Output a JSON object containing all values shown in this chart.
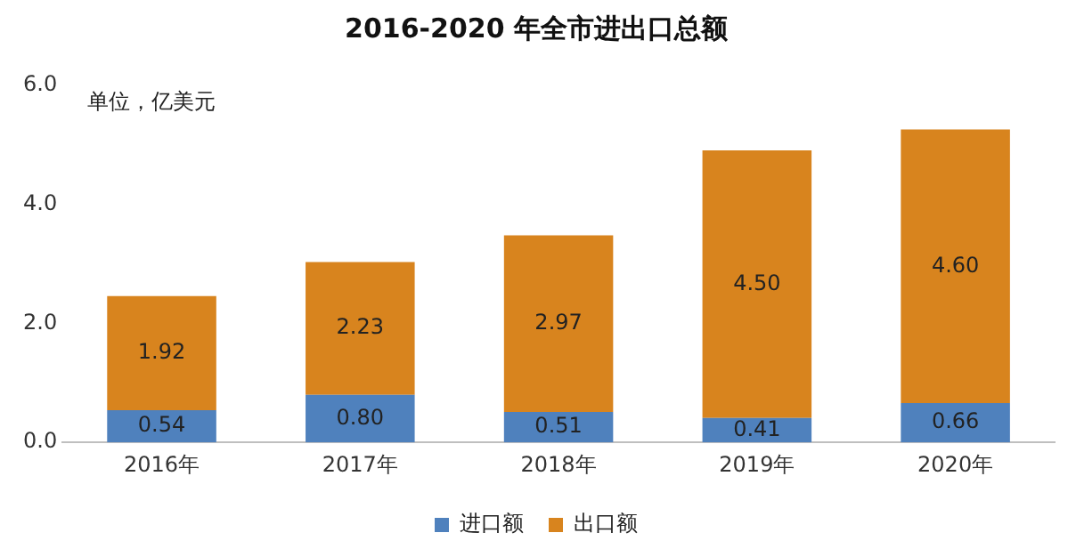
{
  "chart_data": {
    "type": "bar",
    "title": "2016-2020 年全市进出口总额",
    "stacked": true,
    "categories": [
      "2016年",
      "2017年",
      "2018年",
      "2019年",
      "2020年"
    ],
    "series": [
      {
        "name": "进口额",
        "color": "#4f81bd",
        "values": [
          0.54,
          0.8,
          0.51,
          0.41,
          0.66
        ],
        "value_labels": [
          "0.54",
          "0.80",
          "0.51",
          "0.41",
          "0.66"
        ]
      },
      {
        "name": "出口额",
        "color": "#d8841e",
        "values": [
          1.92,
          2.23,
          2.97,
          4.5,
          4.6
        ],
        "value_labels": [
          "1.92",
          "2.23",
          "2.97",
          "4.50",
          "4.60"
        ]
      }
    ],
    "ylim": [
      0,
      6
    ],
    "yticks": [
      {
        "value": 0,
        "label": "0.0"
      },
      {
        "value": 2,
        "label": "2.0"
      },
      {
        "value": 4,
        "label": "4.0"
      },
      {
        "value": 6,
        "label": "6.0"
      }
    ],
    "grid": false,
    "legend": "bottom",
    "annotations": [
      "单位，亿美元"
    ]
  }
}
